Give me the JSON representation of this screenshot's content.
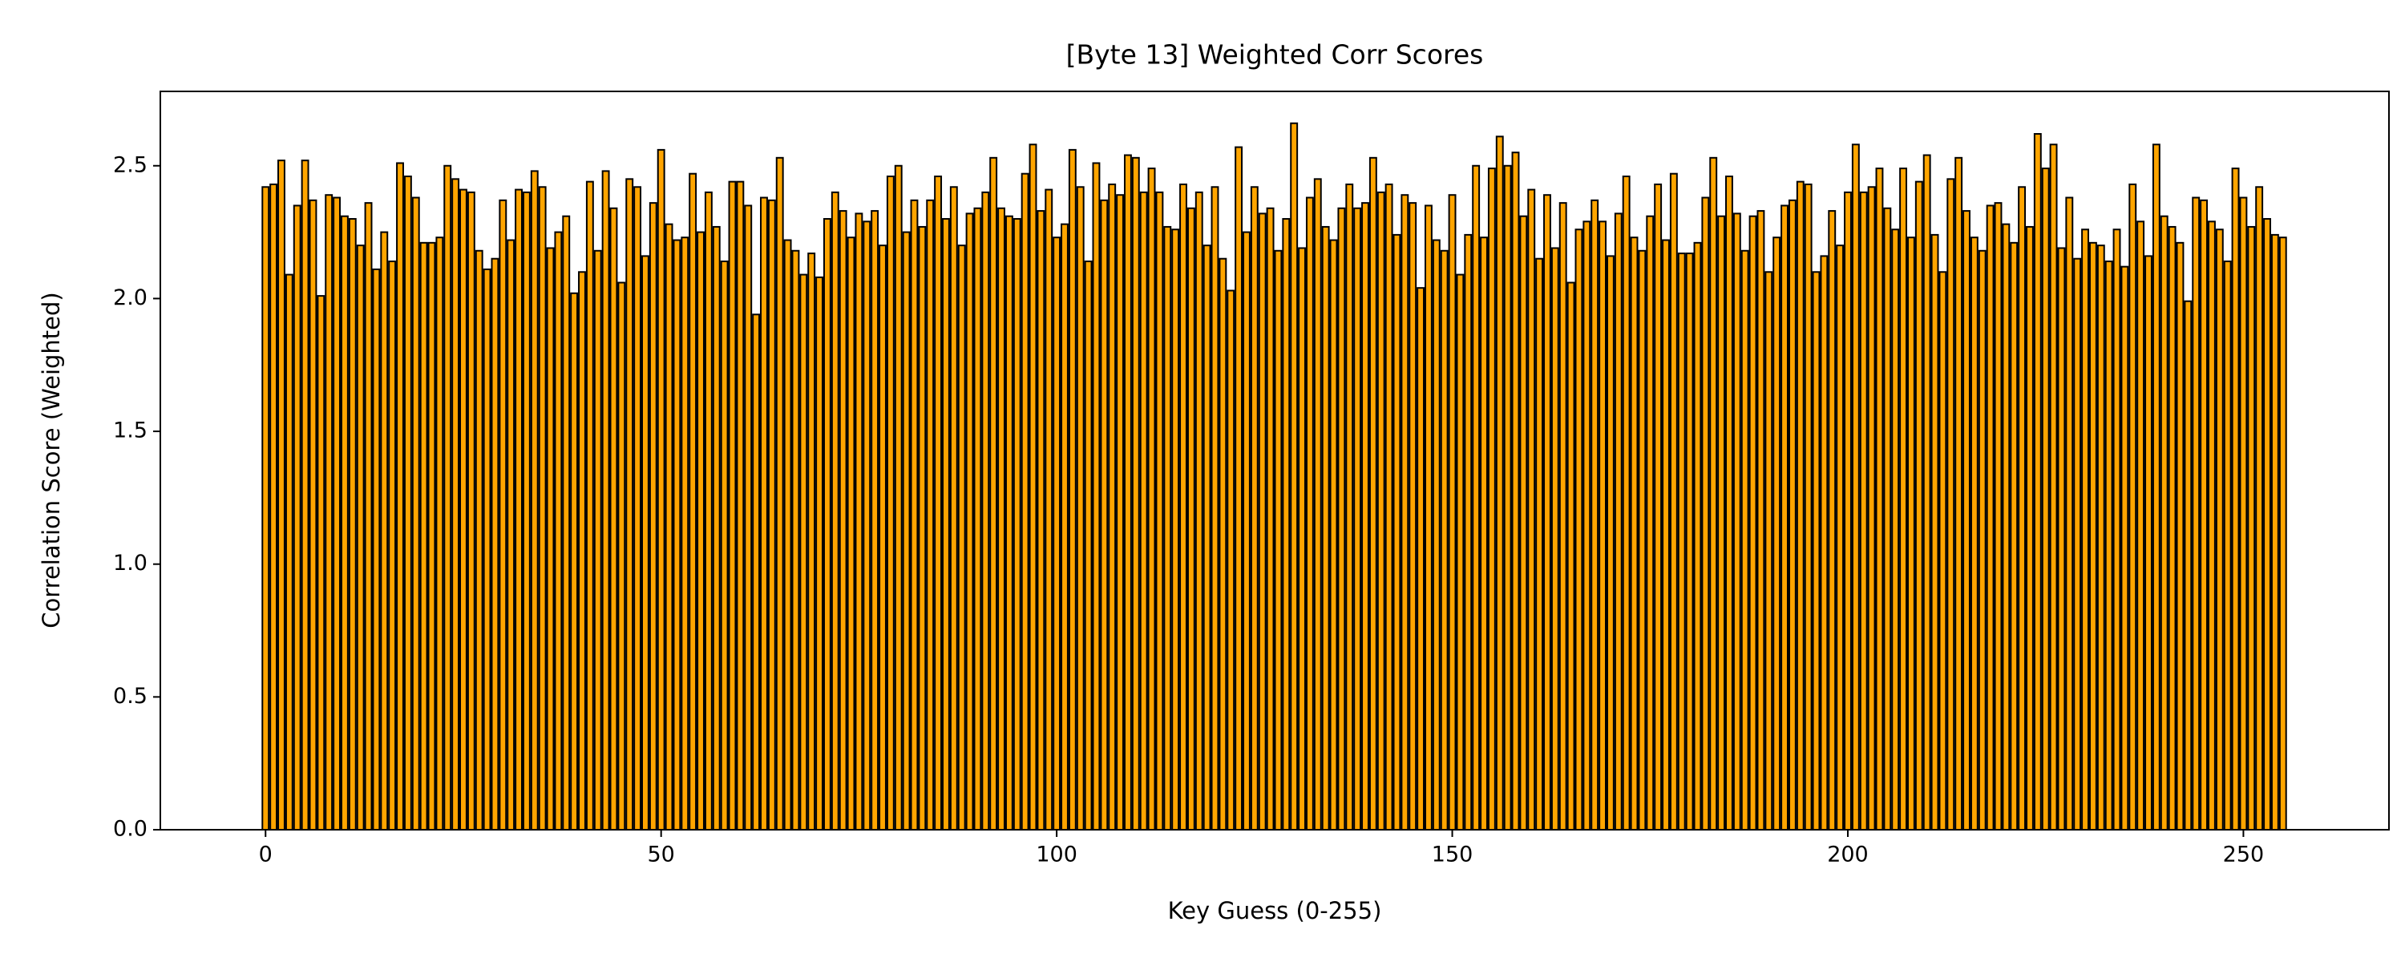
{
  "chart_data": {
    "type": "bar",
    "title": "[Byte 13] Weighted Corr Scores",
    "x_label": "Key Guess (0-255)",
    "y_label": "Correlation Score (Weighted)",
    "color": "#ffa500",
    "edgecolor": "#000000",
    "x": [
      0,
      1,
      2,
      3,
      4,
      5,
      6,
      7,
      8,
      9,
      10,
      11,
      12,
      13,
      14,
      15,
      16,
      17,
      18,
      19,
      20,
      21,
      22,
      23,
      24,
      25,
      26,
      27,
      28,
      29,
      30,
      31,
      32,
      33,
      34,
      35,
      36,
      37,
      38,
      39,
      40,
      41,
      42,
      43,
      44,
      45,
      46,
      47,
      48,
      49,
      50,
      51,
      52,
      53,
      54,
      55,
      56,
      57,
      58,
      59,
      60,
      61,
      62,
      63,
      64,
      65,
      66,
      67,
      68,
      69,
      70,
      71,
      72,
      73,
      74,
      75,
      76,
      77,
      78,
      79,
      80,
      81,
      82,
      83,
      84,
      85,
      86,
      87,
      88,
      89,
      90,
      91,
      92,
      93,
      94,
      95,
      96,
      97,
      98,
      99,
      100,
      101,
      102,
      103,
      104,
      105,
      106,
      107,
      108,
      109,
      110,
      111,
      112,
      113,
      114,
      115,
      116,
      117,
      118,
      119,
      120,
      121,
      122,
      123,
      124,
      125,
      126,
      127,
      128,
      129,
      130,
      131,
      132,
      133,
      134,
      135,
      136,
      137,
      138,
      139,
      140,
      141,
      142,
      143,
      144,
      145,
      146,
      147,
      148,
      149,
      150,
      151,
      152,
      153,
      154,
      155,
      156,
      157,
      158,
      159,
      160,
      161,
      162,
      163,
      164,
      165,
      166,
      167,
      168,
      169,
      170,
      171,
      172,
      173,
      174,
      175,
      176,
      177,
      178,
      179,
      180,
      181,
      182,
      183,
      184,
      185,
      186,
      187,
      188,
      189,
      190,
      191,
      192,
      193,
      194,
      195,
      196,
      197,
      198,
      199,
      200,
      201,
      202,
      203,
      204,
      205,
      206,
      207,
      208,
      209,
      210,
      211,
      212,
      213,
      214,
      215,
      216,
      217,
      218,
      219,
      220,
      221,
      222,
      223,
      224,
      225,
      226,
      227,
      228,
      229,
      230,
      231,
      232,
      233,
      234,
      235,
      236,
      237,
      238,
      239,
      240,
      241,
      242,
      243,
      244,
      245,
      246,
      247,
      248,
      249,
      250,
      251,
      252,
      253,
      254,
      255
    ],
    "values": [
      2.42,
      2.43,
      2.52,
      2.09,
      2.35,
      2.52,
      2.37,
      2.01,
      2.39,
      2.38,
      2.31,
      2.3,
      2.2,
      2.36,
      2.11,
      2.25,
      2.14,
      2.51,
      2.46,
      2.38,
      2.21,
      2.21,
      2.23,
      2.5,
      2.45,
      2.41,
      2.4,
      2.18,
      2.11,
      2.15,
      2.37,
      2.22,
      2.41,
      2.4,
      2.48,
      2.42,
      2.19,
      2.25,
      2.31,
      2.02,
      2.1,
      2.44,
      2.18,
      2.48,
      2.34,
      2.06,
      2.45,
      2.42,
      2.16,
      2.36,
      2.56,
      2.28,
      2.22,
      2.23,
      2.47,
      2.25,
      2.4,
      2.27,
      2.14,
      2.44,
      2.44,
      2.35,
      1.94,
      2.38,
      2.37,
      2.53,
      2.22,
      2.18,
      2.09,
      2.17,
      2.08,
      2.3,
      2.4,
      2.33,
      2.23,
      2.32,
      2.29,
      2.33,
      2.2,
      2.46,
      2.5,
      2.25,
      2.37,
      2.27,
      2.37,
      2.46,
      2.3,
      2.42,
      2.2,
      2.32,
      2.34,
      2.4,
      2.53,
      2.34,
      2.31,
      2.3,
      2.47,
      2.58,
      2.33,
      2.41,
      2.23,
      2.28,
      2.56,
      2.42,
      2.14,
      2.51,
      2.37,
      2.43,
      2.39,
      2.54,
      2.53,
      2.4,
      2.49,
      2.4,
      2.27,
      2.26,
      2.43,
      2.34,
      2.4,
      2.2,
      2.42,
      2.15,
      2.03,
      2.57,
      2.25,
      2.42,
      2.32,
      2.34,
      2.18,
      2.3,
      2.66,
      2.19,
      2.38,
      2.45,
      2.27,
      2.22,
      2.34,
      2.43,
      2.34,
      2.36,
      2.53,
      2.4,
      2.43,
      2.24,
      2.39,
      2.36,
      2.04,
      2.35,
      2.22,
      2.18,
      2.39,
      2.09,
      2.24,
      2.5,
      2.23,
      2.49,
      2.61,
      2.5,
      2.55,
      2.31,
      2.41,
      2.15,
      2.39,
      2.19,
      2.36,
      2.06,
      2.26,
      2.29,
      2.37,
      2.29,
      2.16,
      2.32,
      2.46,
      2.23,
      2.18,
      2.31,
      2.43,
      2.22,
      2.47,
      2.17,
      2.17,
      2.21,
      2.38,
      2.53,
      2.31,
      2.46,
      2.32,
      2.18,
      2.31,
      2.33,
      2.1,
      2.23,
      2.35,
      2.37,
      2.44,
      2.43,
      2.1,
      2.16,
      2.33,
      2.2,
      2.4,
      2.58,
      2.4,
      2.42,
      2.49,
      2.34,
      2.26,
      2.49,
      2.23,
      2.44,
      2.54,
      2.24,
      2.1,
      2.45,
      2.53,
      2.33,
      2.23,
      2.18,
      2.35,
      2.36,
      2.28,
      2.21,
      2.42,
      2.27,
      2.62,
      2.49,
      2.58,
      2.19,
      2.38,
      2.15,
      2.26,
      2.21,
      2.2,
      2.14,
      2.26,
      2.12,
      2.43,
      2.29,
      2.16,
      2.58,
      2.31,
      2.27,
      2.21,
      1.99,
      2.38,
      2.37,
      2.29,
      2.26,
      2.14,
      2.49,
      2.38,
      2.27,
      2.42,
      2.3,
      2.24,
      2.23
    ],
    "bar_width": 0.8,
    "xlim": [
      -13.3,
      268.4
    ],
    "xticks": [
      0,
      50,
      100,
      150,
      200,
      250
    ],
    "ylim": [
      0,
      2.78
    ],
    "yticks": [
      {
        "value": 0,
        "label": "0.0"
      },
      0.5,
      {
        "value": 1,
        "label": "1.0"
      },
      1.5,
      {
        "value": 2,
        "label": "2.0"
      },
      2.5
    ],
    "grid": false
  }
}
